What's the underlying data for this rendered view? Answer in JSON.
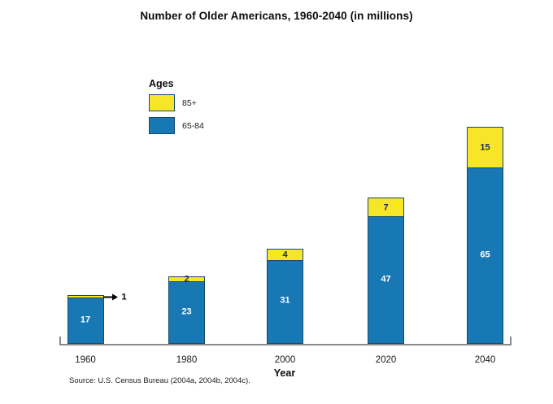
{
  "title": "Number of Older Americans, 1960-2040 (in millions)",
  "legend": {
    "heading": "Ages",
    "items": [
      {
        "label": "85+",
        "color": "#F7E627"
      },
      {
        "label": "65-84",
        "color": "#1878B4"
      }
    ]
  },
  "chart_data": {
    "type": "bar",
    "stacked": true,
    "categories": [
      "1960",
      "1980",
      "2000",
      "2020",
      "2040"
    ],
    "series": [
      {
        "name": "65-84",
        "color": "#1878B4",
        "values": [
          17,
          23,
          31,
          47,
          65
        ]
      },
      {
        "name": "85+",
        "color": "#F7E627",
        "values": [
          1,
          2,
          4,
          7,
          15
        ]
      }
    ],
    "totals": [
      18,
      25,
      35,
      54,
      80
    ],
    "title": "Number of Older Americans, 1960-2040 (in millions)",
    "xlabel": "Year",
    "ylabel": "",
    "ylim": [
      0,
      85
    ],
    "grid": false,
    "legend_position": "upper-left",
    "annotations": [
      {
        "category": "1960",
        "series": "85+",
        "text": "1",
        "style": "arrow-pointing-right-from-bar"
      }
    ]
  },
  "x_axis_title": "Year",
  "source": "Source: U.S. Census Bureau (2004a, 2004b, 2004c).",
  "colors": {
    "bar_blue": "#1878B4",
    "bar_yellow": "#F7E627",
    "bar_border": "#17486E",
    "axis_gray": "#8A8A8A",
    "label_on_blue": "#ffffff",
    "label_on_yellow": "#1A2E44",
    "text": "#0d0d0d"
  }
}
